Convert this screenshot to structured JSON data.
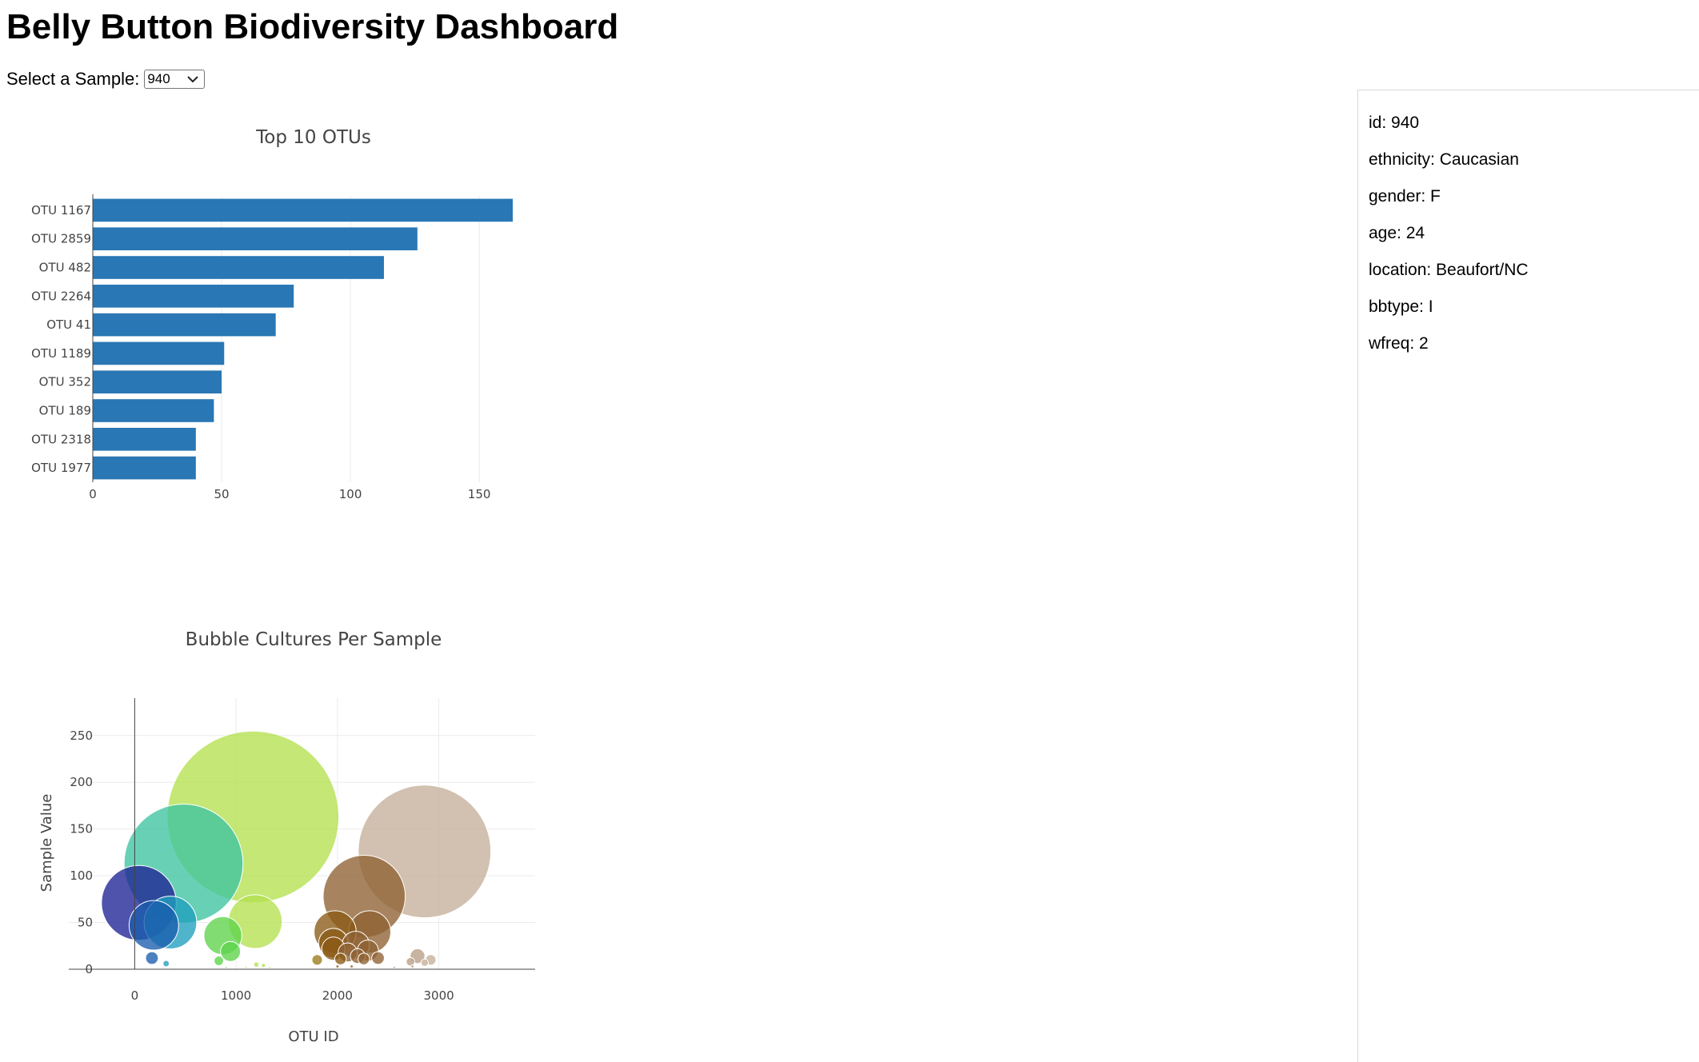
{
  "dashboard": {
    "title": "Belly Button Biodiversity Dashboard",
    "select_label": "Select a Sample:",
    "selected_sample": "940"
  },
  "metadata": [
    "id: 940",
    "ethnicity: Caucasian",
    "gender: F",
    "age: 24",
    "location: Beaufort/NC",
    "bbtype: I",
    "wfreq: 2"
  ],
  "chart_data": [
    {
      "type": "bar",
      "orientation": "horizontal",
      "title": "Top 10 OTUs",
      "xlabel": "",
      "ylabel": "",
      "categories": [
        "OTU 1167",
        "OTU 2859",
        "OTU 482",
        "OTU 2264",
        "OTU 41",
        "OTU 1189",
        "OTU 352",
        "OTU 189",
        "OTU 2318",
        "OTU 1977"
      ],
      "values": [
        163,
        126,
        113,
        78,
        71,
        51,
        50,
        47,
        40,
        40
      ],
      "xlim": [
        0,
        163
      ],
      "xticks": [
        0,
        50,
        100,
        150
      ],
      "color": "#2977b4",
      "grid": true
    },
    {
      "type": "scatter",
      "subtype": "bubble",
      "title": "Bubble Cultures Per Sample",
      "xlabel": "OTU ID",
      "ylabel": "Sample Value",
      "xlim": [
        -650,
        3950
      ],
      "ylim": [
        0,
        290
      ],
      "xticks": [
        0,
        1000,
        2000,
        3000
      ],
      "yticks": [
        0,
        50,
        100,
        150,
        200,
        250
      ],
      "colorscale": "Earth",
      "grid": true,
      "points": [
        {
          "x": 1167,
          "y": 163,
          "color": "#b3e04e"
        },
        {
          "x": 2859,
          "y": 126,
          "color": "#c5b09a"
        },
        {
          "x": 482,
          "y": 113,
          "color": "#3ec4a0"
        },
        {
          "x": 2264,
          "y": 78,
          "color": "#8e6132"
        },
        {
          "x": 41,
          "y": 71,
          "color": "#1d2294"
        },
        {
          "x": 1189,
          "y": 51,
          "color": "#b3e04e"
        },
        {
          "x": 352,
          "y": 50,
          "color": "#1f9fbf"
        },
        {
          "x": 189,
          "y": 47,
          "color": "#1a5cad"
        },
        {
          "x": 2318,
          "y": 40,
          "color": "#8e6132"
        },
        {
          "x": 1977,
          "y": 40,
          "color": "#8a5a14"
        },
        {
          "x": 870,
          "y": 36,
          "color": "#5ed44a"
        },
        {
          "x": 1960,
          "y": 28,
          "color": "#8a5a14"
        },
        {
          "x": 2180,
          "y": 26,
          "color": "#8e6132"
        },
        {
          "x": 1960,
          "y": 22,
          "color": "#8a5a14"
        },
        {
          "x": 945,
          "y": 19,
          "color": "#5ed44a"
        },
        {
          "x": 2300,
          "y": 20,
          "color": "#8e6132"
        },
        {
          "x": 2100,
          "y": 18,
          "color": "#8e6132"
        },
        {
          "x": 2200,
          "y": 14,
          "color": "#8e6132"
        },
        {
          "x": 2790,
          "y": 14,
          "color": "#b89d85"
        },
        {
          "x": 2400,
          "y": 12,
          "color": "#8e6132"
        },
        {
          "x": 170,
          "y": 12,
          "color": "#1a5cad"
        },
        {
          "x": 2030,
          "y": 11,
          "color": "#8a5a14"
        },
        {
          "x": 2260,
          "y": 11,
          "color": "#8e6132"
        },
        {
          "x": 1800,
          "y": 10,
          "color": "#9a7a1a"
        },
        {
          "x": 2920,
          "y": 10,
          "color": "#c5b09a"
        },
        {
          "x": 830,
          "y": 9,
          "color": "#5ed44a"
        },
        {
          "x": 2720,
          "y": 8,
          "color": "#b89d85"
        },
        {
          "x": 2860,
          "y": 7,
          "color": "#c5b09a"
        },
        {
          "x": 310,
          "y": 6,
          "color": "#1f9fbf"
        },
        {
          "x": 1200,
          "y": 5,
          "color": "#b3e04e"
        },
        {
          "x": 1270,
          "y": 4,
          "color": "#b3e04e"
        },
        {
          "x": 2140,
          "y": 3,
          "color": "#8e6132"
        },
        {
          "x": 2000,
          "y": 3,
          "color": "#8a5a14"
        },
        {
          "x": 1100,
          "y": 2,
          "color": "#b3e04e"
        },
        {
          "x": 1330,
          "y": 2,
          "color": "#b3e04e"
        },
        {
          "x": 2560,
          "y": 2,
          "color": "#8e6132"
        },
        {
          "x": 2740,
          "y": 3,
          "color": "#b89d85"
        },
        {
          "x": 900,
          "y": 2,
          "color": "#5ed44a"
        },
        {
          "x": 400,
          "y": 1,
          "color": "#1f9fbf"
        },
        {
          "x": 1480,
          "y": 1,
          "color": "#b3e04e"
        }
      ]
    }
  ]
}
